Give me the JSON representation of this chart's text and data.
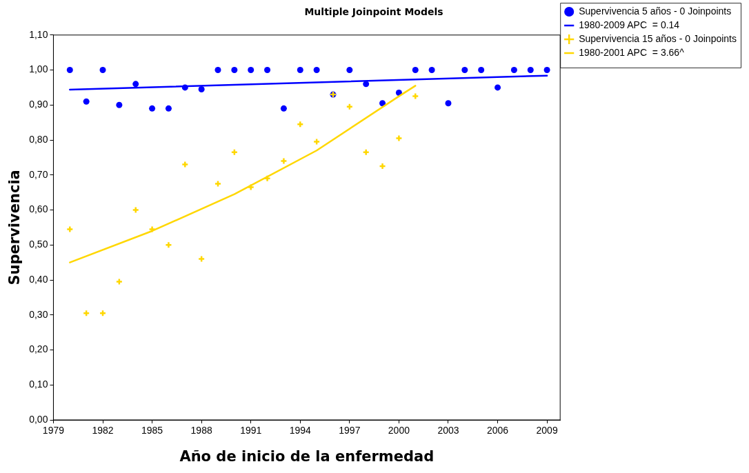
{
  "chart_data": {
    "type": "scatter",
    "title": "Multiple Joinpoint Models",
    "xlabel": "Año de inicio de la enfermedad",
    "ylabel": "Supervivencia",
    "series": [
      {
        "name": "Supervivencia 5 años - 0 Joinpoints",
        "marker": "circle",
        "color": "#0000ff",
        "x": [
          1980,
          1981,
          1982,
          1983,
          1984,
          1985,
          1986,
          1987,
          1988,
          1989,
          1990,
          1991,
          1992,
          1993,
          1994,
          1995,
          1996,
          1997,
          1998,
          1999,
          2000,
          2001,
          2002,
          2003,
          2004,
          2005,
          2006,
          2007,
          2008,
          2009
        ],
        "values": [
          1.0,
          0.91,
          1.0,
          0.9,
          0.96,
          0.89,
          0.89,
          0.95,
          0.945,
          1.0,
          1.0,
          1.0,
          1.0,
          0.89,
          1.0,
          1.0,
          0.93,
          1.0,
          0.96,
          0.905,
          0.935,
          1.0,
          1.0,
          0.905,
          1.0,
          1.0,
          0.95,
          1.0,
          1.0,
          1.0
        ]
      },
      {
        "name": "1980-2009 APC  = 0.14",
        "type": "line",
        "marker": "none",
        "color": "#0000ff",
        "x": [
          1980,
          2009
        ],
        "values": [
          0.944,
          0.984
        ]
      },
      {
        "name": "Supervivencia 15 años - 0 Joinpoints",
        "marker": "cross",
        "color": "#ffd700",
        "x": [
          1980,
          1981,
          1982,
          1983,
          1984,
          1985,
          1986,
          1987,
          1988,
          1989,
          1990,
          1991,
          1992,
          1993,
          1994,
          1995,
          1996,
          1997,
          1998,
          1999,
          2000,
          2001
        ],
        "values": [
          0.545,
          0.305,
          0.305,
          0.395,
          0.6,
          0.545,
          0.5,
          0.73,
          0.46,
          0.675,
          0.765,
          0.665,
          0.69,
          0.74,
          0.845,
          0.795,
          0.93,
          0.895,
          0.765,
          0.725,
          0.805,
          0.925
        ]
      },
      {
        "name": "1980-2001 APC  = 3.66^",
        "type": "line",
        "marker": "none",
        "color": "#ffd700",
        "x": [
          1980,
          1985,
          1990,
          1995,
          2000,
          2001
        ],
        "values": [
          0.45,
          0.54,
          0.645,
          0.77,
          0.925,
          0.955
        ]
      }
    ],
    "xlim": [
      1979,
      2009.8
    ],
    "xticks": [
      1979,
      1982,
      1985,
      1988,
      1991,
      1994,
      1997,
      2000,
      2003,
      2006,
      2009
    ],
    "ylim": [
      0,
      1.1
    ],
    "yticks": [
      {
        "value": 0,
        "label": "0,00"
      },
      {
        "value": 0.1,
        "label": "0,10"
      },
      {
        "value": 0.2,
        "label": "0,20"
      },
      {
        "value": 0.3,
        "label": "0,30"
      },
      {
        "value": 0.4,
        "label": "0,40"
      },
      {
        "value": 0.5,
        "label": "0,50"
      },
      {
        "value": 0.6,
        "label": "0,60"
      },
      {
        "value": 0.7,
        "label": "0,70"
      },
      {
        "value": 0.8,
        "label": "0,80"
      },
      {
        "value": 0.9,
        "label": "0,90"
      },
      {
        "value": 1.0,
        "label": "1,00"
      },
      {
        "value": 1.1,
        "label": "1,10"
      }
    ],
    "grid": false,
    "legend": "top right"
  }
}
